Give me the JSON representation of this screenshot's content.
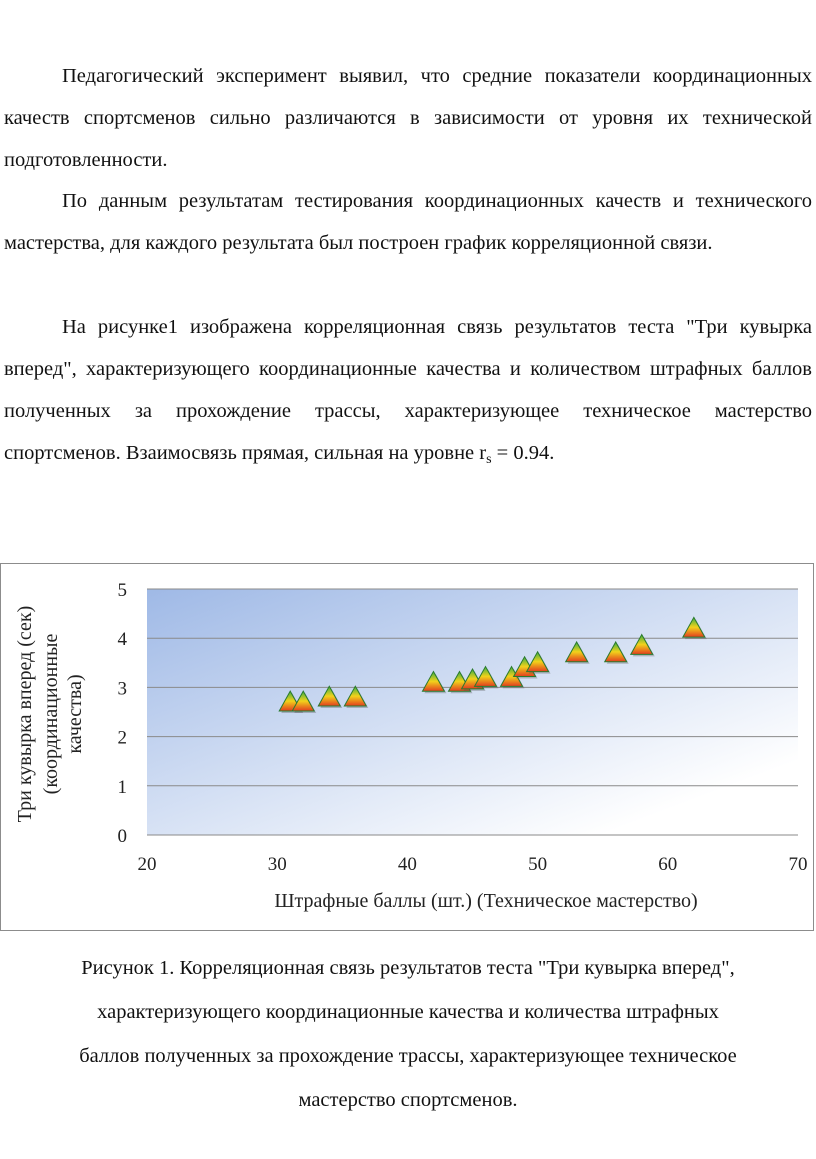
{
  "paragraphs": {
    "p1": "Педагогический эксперимент выявил, что средние показатели координационных качеств спортсменов сильно различаются в зависимости от уровня их технической подготовленности.",
    "p2": "По данным результатам тестирования координационных качеств и технического мастерства, для каждого результата был построен график корреляционной связи.",
    "p3_main": "На рисунке1 изображена корреляционная связь результатов теста \"Три кувырка вперед\", характеризующего координационные качества и количеством штрафных баллов полученных за прохождение трассы, характеризующее техническое мастерство спортсменов. Взаимосвязь прямая, сильная на уровне ",
    "p3_var": "r",
    "p3_sub": "s",
    "p3_tail": " = 0.94."
  },
  "caption": {
    "line1": "Рисунок 1. Корреляционная связь результатов теста \"Три кувырка вперед\",",
    "line2": "характеризующего координационные качества и количества штрафных",
    "line3": "баллов полученных за прохождение трассы, характеризующее техническое",
    "line4": "мастерство спортсменов."
  },
  "chart_data": {
    "type": "scatter",
    "xlabel": "Штрафные баллы (шт.) (Техническое мастерство)",
    "ylabel_lines": [
      "Три кувырка вперед (сек)",
      "(координационные",
      "качества)"
    ],
    "xlim": [
      20,
      70
    ],
    "ylim": [
      0,
      5
    ],
    "x_ticks": [
      "20",
      "30",
      "40",
      "50",
      "60",
      "70"
    ],
    "y_ticks": [
      "0",
      "1",
      "2",
      "3",
      "4",
      "5"
    ],
    "grid": true,
    "legend": "none",
    "marker": "triangle-gradient",
    "colors": {
      "plot_top": "#9fb9e6",
      "plot_bottom": "#ffffff",
      "grid": "#8a8a8a",
      "marker_top": "#3cb043",
      "marker_mid": "#f2d21b",
      "marker_bottom": "#e23b1e"
    },
    "points": [
      {
        "x": 31,
        "y": 2.7
      },
      {
        "x": 32,
        "y": 2.7
      },
      {
        "x": 34,
        "y": 2.8
      },
      {
        "x": 36,
        "y": 2.8
      },
      {
        "x": 42,
        "y": 3.1
      },
      {
        "x": 44,
        "y": 3.1
      },
      {
        "x": 45,
        "y": 3.15
      },
      {
        "x": 46,
        "y": 3.2
      },
      {
        "x": 48,
        "y": 3.2
      },
      {
        "x": 49,
        "y": 3.4
      },
      {
        "x": 50,
        "y": 3.5
      },
      {
        "x": 53,
        "y": 3.7
      },
      {
        "x": 56,
        "y": 3.7
      },
      {
        "x": 58,
        "y": 3.85
      },
      {
        "x": 62,
        "y": 4.2
      }
    ]
  }
}
